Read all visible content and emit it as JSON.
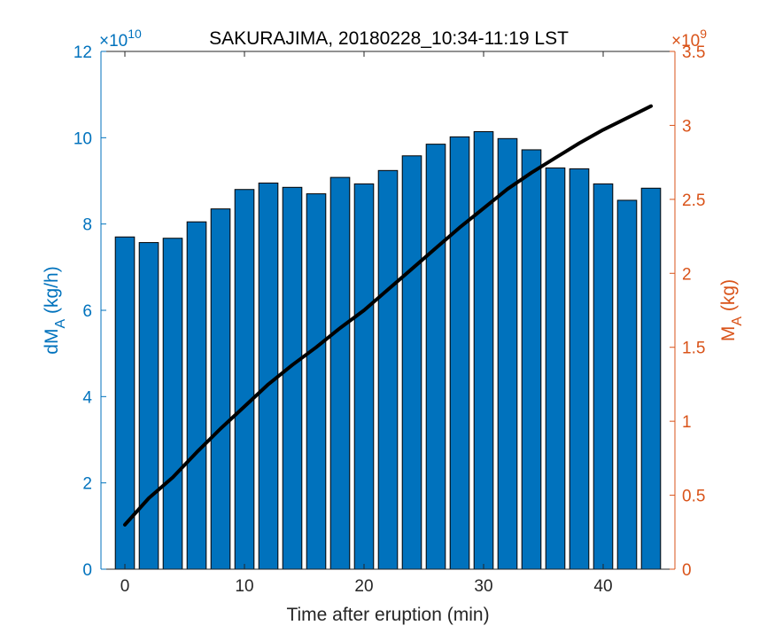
{
  "chart_data": {
    "type": "bar",
    "title": "SAKURAJIMA, 20180228_10:34-11:19 LST",
    "xlabel": "Time after eruption (min)",
    "ylabel_left": {
      "main": "dM",
      "sub": "A",
      "unit": " (kg/h)"
    },
    "ylabel_right": {
      "main": "M",
      "sub": "A",
      "unit": " (kg)"
    },
    "left_exponent": {
      "base": "×10",
      "power": "10"
    },
    "right_exponent": {
      "base": "×10",
      "power": "9"
    },
    "xlim": [
      -2,
      46
    ],
    "ylim_left": [
      0,
      12
    ],
    "ylim_right": [
      0,
      3.5
    ],
    "x_ticks": [
      0,
      10,
      20,
      30,
      40
    ],
    "y_left_ticks": [
      0,
      2,
      4,
      6,
      8,
      10,
      12
    ],
    "y_right_ticks": [
      0,
      0.5,
      1,
      1.5,
      2,
      2.5,
      3,
      3.5
    ],
    "colors": {
      "bars": "#0072BD",
      "right_axis": "#D95319",
      "line": "#000000",
      "axis": "#262626"
    },
    "series": [
      {
        "name": "dM_A",
        "axis": "left",
        "kind": "bar",
        "x": [
          0,
          2,
          4,
          6,
          8,
          10,
          12,
          14,
          16,
          18,
          20,
          22,
          24,
          26,
          28,
          30,
          32,
          34,
          36,
          38,
          40,
          42,
          44
        ],
        "values": [
          7.7,
          7.57,
          7.67,
          8.05,
          8.35,
          8.8,
          8.95,
          8.85,
          8.7,
          9.08,
          8.93,
          9.24,
          9.58,
          9.85,
          10.02,
          10.14,
          9.98,
          9.72,
          9.3,
          9.28,
          8.93,
          8.55,
          8.83
        ]
      },
      {
        "name": "M_A",
        "axis": "right",
        "kind": "line",
        "x": [
          0,
          2,
          4,
          6,
          8,
          10,
          12,
          14,
          16,
          18,
          20,
          22,
          24,
          26,
          28,
          30,
          32,
          34,
          36,
          38,
          40,
          42,
          44
        ],
        "values": [
          0.3,
          0.48,
          0.62,
          0.79,
          0.95,
          1.1,
          1.25,
          1.38,
          1.5,
          1.63,
          1.75,
          1.89,
          2.03,
          2.17,
          2.31,
          2.44,
          2.57,
          2.68,
          2.78,
          2.88,
          2.97,
          3.05,
          3.13
        ]
      }
    ]
  }
}
